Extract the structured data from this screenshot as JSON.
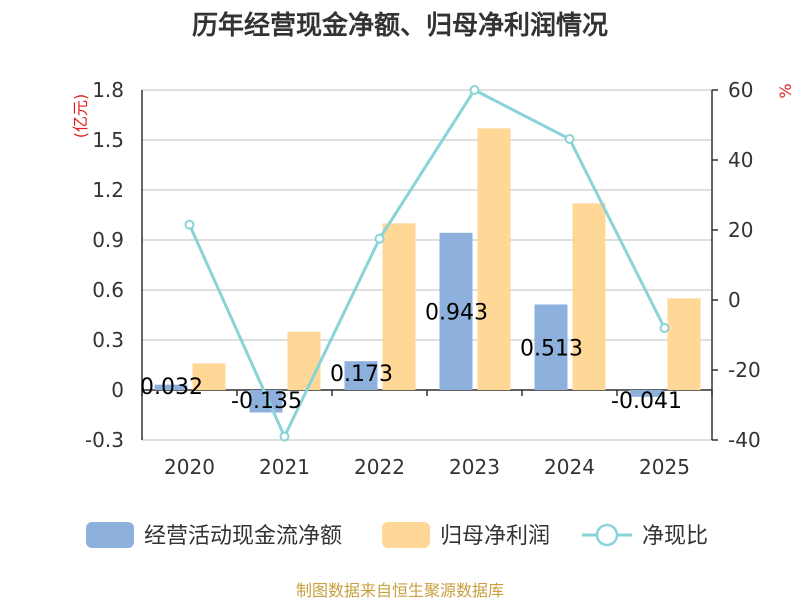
{
  "chart_data": {
    "type": "bar+line",
    "title": "历年经营现金净额、归母净利润情况",
    "categories": [
      "2020",
      "2021",
      "2022",
      "2023",
      "2024",
      "2025"
    ],
    "series": [
      {
        "name": "经营活动现金流净额",
        "type": "bar",
        "axis": "left",
        "color": "#8eb0dc",
        "values": [
          0.032,
          -0.135,
          0.173,
          0.943,
          0.513,
          -0.041
        ],
        "labels": [
          "0.032",
          "-0.135",
          "0.173",
          "0.943",
          "0.513",
          "-0.041"
        ]
      },
      {
        "name": "归母净利润",
        "type": "bar",
        "axis": "left",
        "color": "#ffd797",
        "values": [
          0.16,
          0.35,
          1.0,
          1.57,
          1.12,
          0.55
        ]
      },
      {
        "name": "净现比",
        "type": "line",
        "axis": "right",
        "color": "#8ad3d8",
        "values": [
          21.5,
          -39,
          17.5,
          60,
          46,
          -8
        ]
      }
    ],
    "y_left": {
      "unit": "(亿元)",
      "range": [
        -0.3,
        1.8
      ],
      "ticks": [
        "-0.3",
        "0",
        "0.3",
        "0.6",
        "0.9",
        "1.2",
        "1.5",
        "1.8"
      ],
      "color": "#e02020"
    },
    "y_right": {
      "unit": "%",
      "range": [
        -40,
        60
      ],
      "ticks": [
        "-40",
        "-20",
        "0",
        "20",
        "40",
        "60"
      ],
      "color": "#e02020"
    },
    "grid": true,
    "legend_position": "bottom"
  },
  "source": {
    "text": "制图数据来自恒生聚源数据库",
    "color": "#c8a040"
  }
}
